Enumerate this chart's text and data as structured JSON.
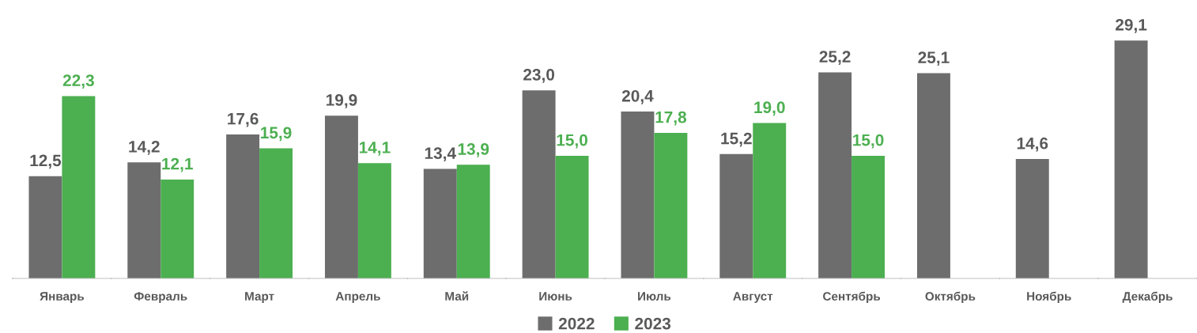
{
  "chart_data": {
    "type": "bar",
    "categories": [
      "Январь",
      "Февраль",
      "Март",
      "Апрель",
      "Май",
      "Июнь",
      "Июль",
      "Август",
      "Сентябрь",
      "Октябрь",
      "Ноябрь",
      "Декабрь"
    ],
    "series": [
      {
        "name": "2022",
        "color": "#6d6d6d",
        "values": [
          12.5,
          14.2,
          17.6,
          19.9,
          13.4,
          23.0,
          20.4,
          15.2,
          25.2,
          25.1,
          14.6,
          29.1
        ],
        "value_labels": [
          "12,5",
          "14,2",
          "17,6",
          "19,9",
          "13,4",
          "23,0",
          "20,4",
          "15,2",
          "25,2",
          "25,1",
          "14,6",
          "29,1"
        ]
      },
      {
        "name": "2023",
        "color": "#4caf50",
        "values": [
          22.3,
          12.1,
          15.9,
          14.1,
          13.9,
          15.0,
          17.8,
          19.0,
          15.0,
          null,
          null,
          null
        ],
        "value_labels": [
          "22,3",
          "12,1",
          "15,9",
          "14,1",
          "13,9",
          "15,0",
          "17,8",
          "19,0",
          "15,0",
          null,
          null,
          null
        ]
      }
    ],
    "legend": "bottom",
    "grid": false
  }
}
